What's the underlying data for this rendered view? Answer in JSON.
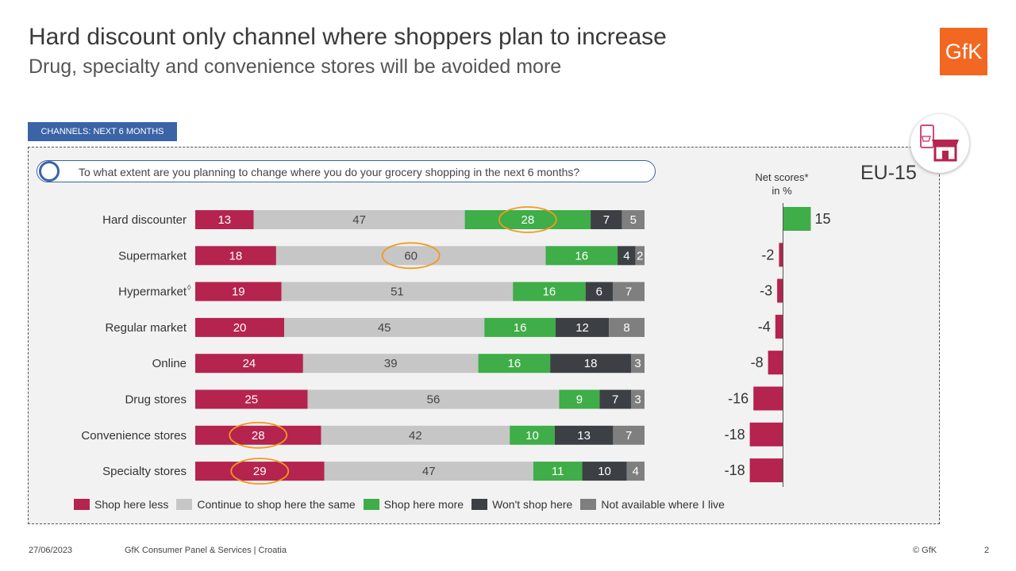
{
  "header": {
    "title": "Hard discount only channel where shoppers plan to increase",
    "subtitle": "Drug, specialty and convenience stores will be avoided more",
    "logo_text": "GfK"
  },
  "section_tag": "CHANNELS: NEXT 6 MONTHS",
  "question": "To what extent are you planning to change where you do your grocery shopping in the next 6 months?",
  "region_label": "EU-15",
  "net_scores_title": [
    "Net scores*",
    "in %"
  ],
  "colors": {
    "shop_less": "#b5234f",
    "same": "#c6c6c6",
    "more": "#3fad48",
    "wont": "#3c4044",
    "not_available": "#7f7f7f",
    "highlight": "#f29a1d",
    "accent_blue": "#3a64a6",
    "brand_orange": "#f26722"
  },
  "icons": {
    "badge": "shop-cart-icon"
  },
  "chart_data": [
    {
      "type": "bar",
      "stacked": true,
      "orientation": "horizontal",
      "categories": [
        "Hard discounter",
        "Supermarket",
        "Hypermarket",
        "Regular market",
        "Online",
        "Drug stores",
        "Convenience stores",
        "Specialty stores"
      ],
      "category_superscripts": [
        "",
        "",
        "◊",
        "",
        "",
        "",
        "",
        ""
      ],
      "series": [
        {
          "name": "Shop here less",
          "values": [
            13,
            18,
            19,
            20,
            24,
            25,
            28,
            29
          ]
        },
        {
          "name": "Continue to shop here the same",
          "values": [
            47,
            60,
            51,
            45,
            39,
            56,
            42,
            47
          ]
        },
        {
          "name": "Shop here more",
          "values": [
            28,
            16,
            16,
            16,
            16,
            9,
            10,
            11
          ]
        },
        {
          "name": "Won't shop here",
          "values": [
            7,
            4,
            6,
            12,
            18,
            7,
            13,
            10
          ]
        },
        {
          "name": "Not available where I live",
          "values": [
            5,
            2,
            7,
            8,
            3,
            3,
            7,
            4
          ]
        }
      ],
      "highlighted": [
        {
          "category": "Hard discounter",
          "series": "Shop here more"
        },
        {
          "category": "Supermarket",
          "series": "Continue to shop here the same"
        },
        {
          "category": "Convenience stores",
          "series": "Shop here less"
        },
        {
          "category": "Specialty stores",
          "series": "Shop here less"
        }
      ],
      "legend_position": "bottom"
    },
    {
      "type": "bar",
      "orientation": "horizontal",
      "categories": [
        "Hard discounter",
        "Supermarket",
        "Hypermarket",
        "Regular market",
        "Online",
        "Drug stores",
        "Convenience stores",
        "Specialty stores"
      ],
      "values": [
        15,
        -2,
        -3,
        -4,
        -8,
        -16,
        -18,
        -18
      ]
    }
  ],
  "legend": [
    {
      "label": "Shop here less"
    },
    {
      "label": "Continue to shop here the same"
    },
    {
      "label": "Shop here more"
    },
    {
      "label": "Won't shop here"
    },
    {
      "label": "Not available where I live"
    }
  ],
  "footer": {
    "date": "27/06/2023",
    "source": "GfK Consumer Panel & Services | Croatia",
    "copyright": "© GfK",
    "page_number": "2"
  }
}
